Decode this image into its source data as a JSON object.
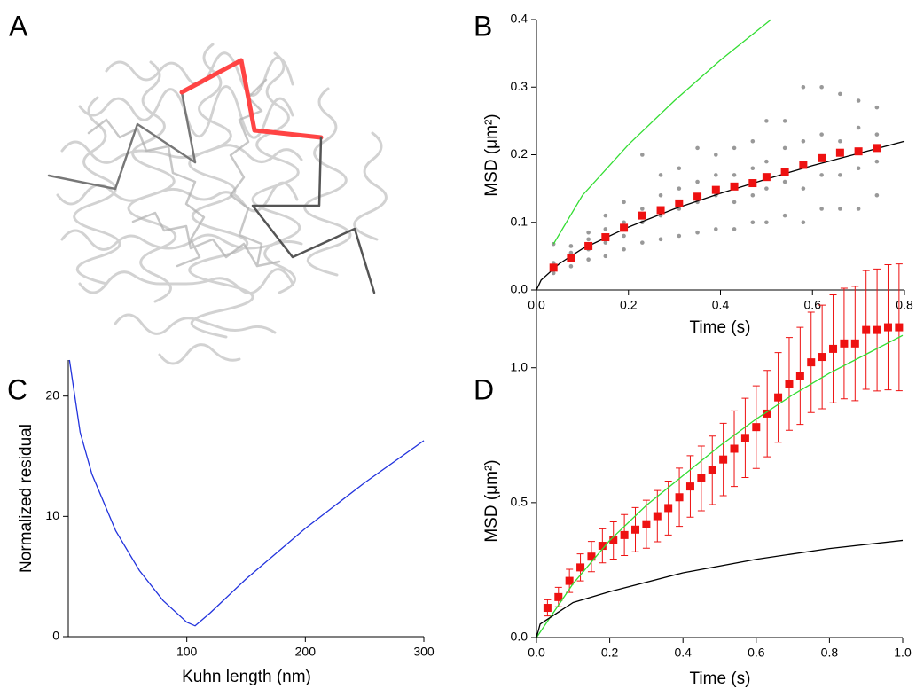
{
  "panel_labels": [
    "A",
    "B",
    "C",
    "D"
  ],
  "chart_data": [
    {
      "type": "scatter",
      "xlabel": "Time (s)",
      "ylabel": "MSD (μm²)",
      "xlim": [
        0,
        0.8
      ],
      "ylim": [
        0,
        0.4
      ],
      "xticks": [
        {
          "value": 0,
          "label": "0.0"
        },
        0.2,
        0.4,
        0.6,
        0.8
      ],
      "yticks": [
        {
          "value": 0,
          "label": "0.0"
        },
        0.1,
        0.2,
        0.3,
        0.4
      ],
      "series": [
        {
          "type": "scatter",
          "marker": "dot",
          "color": "#999999",
          "x": [
            0.037,
            0.037,
            0.037,
            0.037,
            0.075,
            0.075,
            0.075,
            0.075,
            0.113,
            0.113,
            0.113,
            0.113,
            0.15,
            0.15,
            0.15,
            0.15,
            0.19,
            0.19,
            0.19,
            0.19,
            0.23,
            0.23,
            0.23,
            0.23,
            0.27,
            0.27,
            0.27,
            0.27,
            0.31,
            0.31,
            0.31,
            0.31,
            0.35,
            0.35,
            0.35,
            0.35,
            0.39,
            0.39,
            0.39,
            0.39,
            0.43,
            0.43,
            0.43,
            0.43,
            0.47,
            0.47,
            0.47,
            0.47,
            0.5,
            0.5,
            0.5,
            0.5,
            0.54,
            0.54,
            0.54,
            0.54,
            0.58,
            0.58,
            0.58,
            0.58,
            0.62,
            0.62,
            0.62,
            0.62,
            0.66,
            0.66,
            0.66,
            0.66,
            0.7,
            0.7,
            0.7,
            0.7,
            0.74,
            0.74,
            0.74,
            0.74
          ],
          "values": [
            0.025,
            0.03,
            0.04,
            0.068,
            0.035,
            0.045,
            0.055,
            0.065,
            0.045,
            0.06,
            0.075,
            0.085,
            0.05,
            0.07,
            0.09,
            0.11,
            0.06,
            0.08,
            0.1,
            0.13,
            0.07,
            0.1,
            0.12,
            0.2,
            0.075,
            0.11,
            0.14,
            0.17,
            0.08,
            0.12,
            0.15,
            0.18,
            0.085,
            0.13,
            0.16,
            0.21,
            0.09,
            0.14,
            0.17,
            0.2,
            0.09,
            0.13,
            0.17,
            0.21,
            0.1,
            0.14,
            0.18,
            0.22,
            0.1,
            0.15,
            0.19,
            0.25,
            0.11,
            0.16,
            0.21,
            0.25,
            0.1,
            0.15,
            0.22,
            0.3,
            0.12,
            0.17,
            0.23,
            0.3,
            0.12,
            0.17,
            0.22,
            0.29,
            0.12,
            0.18,
            0.24,
            0.28,
            0.14,
            0.19,
            0.23,
            0.27
          ]
        },
        {
          "type": "line",
          "color": "#000000",
          "x": [
            0,
            0.01,
            0.05,
            0.1,
            0.2,
            0.3,
            0.4,
            0.5,
            0.6,
            0.7,
            0.8
          ],
          "values": [
            0,
            0.0145,
            0.039,
            0.061,
            0.093,
            0.12,
            0.143,
            0.164,
            0.184,
            0.202,
            0.22
          ]
        },
        {
          "type": "line",
          "color": "#33dd33",
          "x": [
            0.037,
            0.1,
            0.2,
            0.3,
            0.4,
            0.51
          ],
          "values": [
            0.068,
            0.14,
            0.215,
            0.28,
            0.34,
            0.4
          ]
        },
        {
          "type": "scatter",
          "marker": "square",
          "color": "#ee1111",
          "x": [
            0.037,
            0.075,
            0.113,
            0.15,
            0.19,
            0.23,
            0.27,
            0.31,
            0.35,
            0.39,
            0.43,
            0.47,
            0.5,
            0.54,
            0.58,
            0.62,
            0.66,
            0.7,
            0.74
          ],
          "values": [
            0.033,
            0.047,
            0.065,
            0.078,
            0.092,
            0.11,
            0.118,
            0.128,
            0.138,
            0.148,
            0.153,
            0.158,
            0.167,
            0.175,
            0.185,
            0.195,
            0.203,
            0.205,
            0.21
          ]
        }
      ]
    },
    {
      "type": "line",
      "xlabel": "Kuhn length (nm)",
      "ylabel": "Normalized residual",
      "xlim": [
        0,
        300
      ],
      "ylim": [
        0,
        23
      ],
      "xticks": [
        100,
        200,
        300
      ],
      "yticks": [
        0,
        10,
        20
      ],
      "series": [
        {
          "type": "line",
          "color": "#2233dd",
          "x": [
            1,
            10,
            20,
            40,
            60,
            80,
            100,
            107,
            120,
            150,
            200,
            250,
            300
          ],
          "values": [
            23,
            17,
            13.5,
            8.8,
            5.5,
            3,
            1.2,
            0.9,
            2,
            4.8,
            9,
            12.8,
            16.3
          ]
        }
      ]
    },
    {
      "type": "scatter",
      "xlabel": "Time (s)",
      "ylabel": "MSD (μm²)",
      "xlim": [
        0,
        1
      ],
      "ylim": [
        0,
        1.4
      ],
      "xticks": [
        {
          "value": 0,
          "label": "0.0"
        },
        0.2,
        0.4,
        0.6,
        0.8,
        {
          "value": 1,
          "label": "1.0"
        }
      ],
      "yticks": [
        {
          "value": 0,
          "label": "0.0"
        },
        0.5,
        {
          "value": 1,
          "label": "1.0"
        }
      ],
      "series": [
        {
          "type": "errorbar",
          "marker": "square",
          "color": "#ee1111",
          "x": [
            0.03,
            0.06,
            0.09,
            0.12,
            0.15,
            0.18,
            0.21,
            0.24,
            0.27,
            0.3,
            0.33,
            0.36,
            0.39,
            0.42,
            0.45,
            0.48,
            0.51,
            0.54,
            0.57,
            0.6,
            0.63,
            0.66,
            0.69,
            0.72,
            0.75,
            0.78,
            0.81,
            0.84,
            0.87,
            0.9,
            0.93,
            0.96,
            0.99
          ],
          "values": [
            0.11,
            0.15,
            0.21,
            0.26,
            0.3,
            0.34,
            0.36,
            0.38,
            0.4,
            0.42,
            0.45,
            0.48,
            0.52,
            0.56,
            0.59,
            0.62,
            0.66,
            0.7,
            0.74,
            0.78,
            0.83,
            0.89,
            0.94,
            0.97,
            1.02,
            1.04,
            1.07,
            1.09,
            1.09,
            1.14,
            1.14,
            1.15,
            1.15
          ],
          "errors": [
            0.03,
            0.036,
            0.043,
            0.05,
            0.056,
            0.063,
            0.069,
            0.076,
            0.082,
            0.089,
            0.095,
            0.1,
            0.108,
            0.114,
            0.12,
            0.127,
            0.134,
            0.14,
            0.147,
            0.153,
            0.16,
            0.166,
            0.172,
            0.18,
            0.186,
            0.192,
            0.2,
            0.205,
            0.212,
            0.22,
            0.226,
            0.232,
            0.235
          ]
        },
        {
          "type": "line",
          "color": "#33dd33",
          "x": [
            0,
            0.1,
            0.2,
            0.3,
            0.4,
            0.5,
            0.6,
            0.7,
            0.8,
            0.9,
            1
          ],
          "values": [
            0,
            0.2,
            0.36,
            0.49,
            0.6,
            0.71,
            0.81,
            0.9,
            0.98,
            1.05,
            1.12
          ]
        },
        {
          "type": "line",
          "color": "#000000",
          "x": [
            0,
            0.01,
            0.1,
            0.2,
            0.4,
            0.6,
            0.8,
            1
          ],
          "values": [
            0,
            0.05,
            0.13,
            0.17,
            0.24,
            0.29,
            0.33,
            0.36
          ]
        }
      ]
    }
  ]
}
